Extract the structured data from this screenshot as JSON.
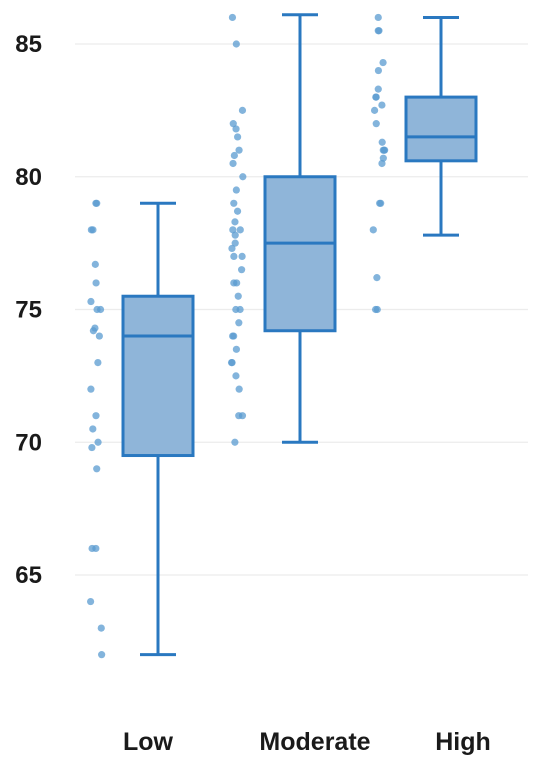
{
  "chart_data": {
    "type": "box",
    "title": "",
    "xlabel": "",
    "ylabel": "",
    "ylim": [
      61,
      86.2
    ],
    "yticks": [
      65,
      70,
      75,
      80,
      85
    ],
    "grid": true,
    "categories": [
      "Low",
      "Moderate",
      "High"
    ],
    "colors": {
      "box_fill": "#8fb5d9",
      "box_stroke": "#2a78c0",
      "points": "#5a9bd0",
      "grid": "#ececec"
    },
    "boxes": [
      {
        "category": "Low",
        "min": 62,
        "q1": 69.5,
        "median": 74,
        "q3": 75.5,
        "max": 79
      },
      {
        "category": "Moderate",
        "min": 70,
        "q1": 74.2,
        "median": 77.5,
        "q3": 80,
        "max": 86.1
      },
      {
        "category": "High",
        "min": 77.8,
        "q1": 80.6,
        "median": 81.5,
        "q3": 83,
        "max": 86
      }
    ],
    "points": [
      {
        "category": "Low",
        "values": [
          79,
          79,
          78,
          78,
          76.7,
          76,
          75.3,
          75,
          75,
          74.3,
          74.2,
          74,
          73,
          72,
          71,
          70.5,
          70,
          69.8,
          69,
          66,
          66,
          64,
          63,
          62
        ]
      },
      {
        "category": "Moderate",
        "values": [
          86,
          85,
          82.5,
          82,
          81.8,
          81.5,
          81,
          80.8,
          80.5,
          80,
          79.5,
          79,
          78.7,
          78.3,
          78,
          78,
          77.8,
          77.5,
          77.3,
          77,
          77,
          76.5,
          76,
          76,
          75.5,
          75,
          75,
          74.5,
          74,
          74,
          73.5,
          73,
          73,
          72.5,
          72,
          71,
          71,
          70
        ]
      },
      {
        "category": "High",
        "values": [
          86,
          85.5,
          85.5,
          84.3,
          84,
          83.3,
          83,
          83,
          82.7,
          82.5,
          82,
          81.3,
          81,
          81,
          81,
          80.7,
          80.5,
          79,
          79,
          78,
          76.2,
          75,
          75
        ]
      }
    ]
  }
}
